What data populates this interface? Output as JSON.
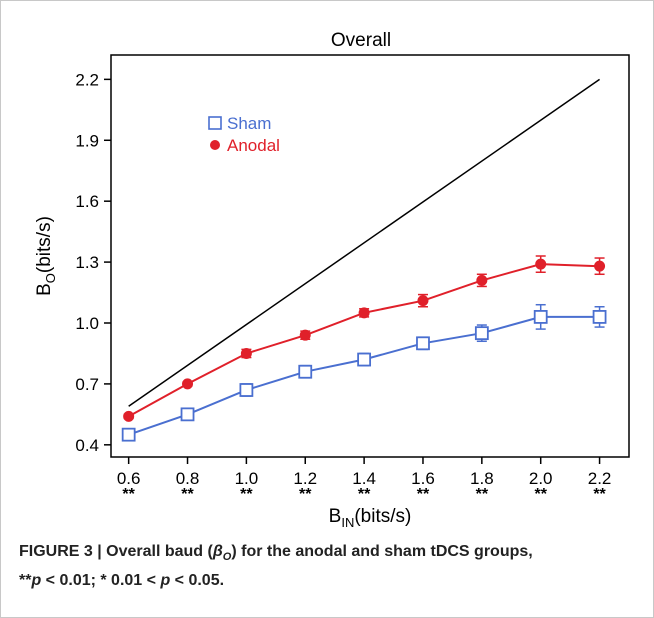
{
  "chart_data": {
    "type": "line",
    "title": "Overall",
    "ylabel": {
      "main": "B",
      "sub": "O",
      "unit": "(bits/s)"
    },
    "xlabel": {
      "main": "B",
      "sub": "IN",
      "unit": "(bits/s)"
    },
    "x": [
      0.6,
      0.8,
      1.0,
      1.2,
      1.4,
      1.6,
      1.8,
      2.0,
      2.2
    ],
    "x_tick_labels": [
      "0.6",
      "0.8",
      "1.0",
      "1.2",
      "1.4",
      "1.6",
      "1.8",
      "2.0",
      "2.2"
    ],
    "y_tick_labels": [
      "2.2",
      "1.9",
      "1.6",
      "1.3",
      "1.0",
      "0.7",
      "0.4"
    ],
    "y_ticks": [
      2.2,
      1.9,
      1.6,
      1.3,
      1.0,
      0.7,
      0.4
    ],
    "xlim": [
      0.54,
      2.3
    ],
    "ylim": [
      0.34,
      2.32
    ],
    "significance": [
      "**",
      "**",
      "**",
      "**",
      "**",
      "**",
      "**",
      "**",
      "**"
    ],
    "reference_line": {
      "x": [
        0.6,
        2.2
      ],
      "y": [
        0.59,
        2.2
      ],
      "color": "#000000"
    },
    "series": [
      {
        "name": "Sham",
        "color": "#4a6fd0",
        "marker": "open-square",
        "values": [
          0.45,
          0.55,
          0.67,
          0.76,
          0.82,
          0.9,
          0.95,
          1.03,
          1.03
        ],
        "errors": [
          0.02,
          0.02,
          0.03,
          0.03,
          0.03,
          0.03,
          0.04,
          0.06,
          0.05
        ]
      },
      {
        "name": "Anodal",
        "color": "#e0202a",
        "marker": "filled-circle",
        "values": [
          0.54,
          0.7,
          0.85,
          0.94,
          1.05,
          1.11,
          1.21,
          1.29,
          1.28
        ],
        "errors": [
          0.01,
          0.01,
          0.02,
          0.02,
          0.02,
          0.03,
          0.03,
          0.04,
          0.04
        ]
      }
    ],
    "legend_position": "top-left",
    "grid": false
  },
  "caption": {
    "figure_label": "FIGURE 3 | ",
    "text_before": "Overall baud (",
    "beta": "β",
    "beta_sub": "O",
    "text_after": ") for the anodal and sham tDCS groups,",
    "line2_stars": "**",
    "line2_p1": "p",
    "line2_text1": " < 0.01; * 0.01 < ",
    "line2_p2": "p",
    "line2_text2": " < 0.05."
  }
}
